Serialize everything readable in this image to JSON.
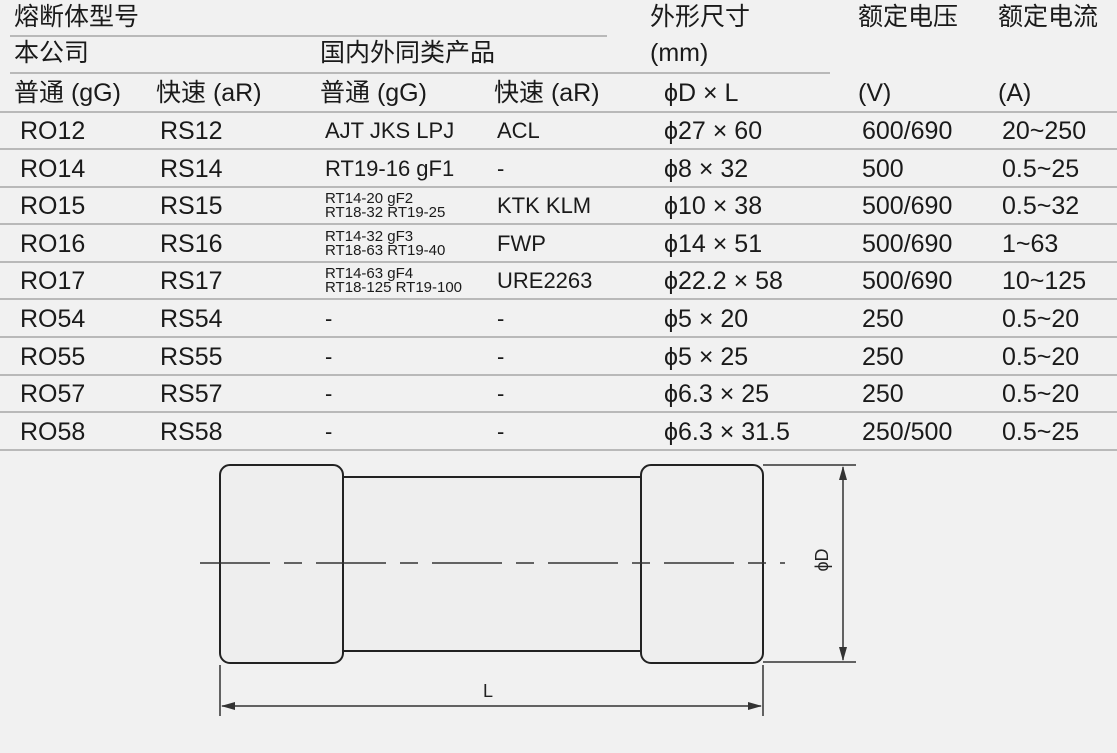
{
  "header": {
    "model_title": "熔断体型号",
    "company": "本公司",
    "similar": "国内外同类产品",
    "dims_title": "外形尺寸",
    "dims_unit": "(mm)",
    "dims_sub": "ϕD × L",
    "voltage_title": "额定电压",
    "voltage_unit": "(V)",
    "current_title": "额定电流",
    "current_unit": "(A)",
    "col_gg": "普通 (gG)",
    "col_ar": "快速 (aR)",
    "col_gg2": "普通 (gG)",
    "col_ar2": "快速 (aR)"
  },
  "rows": [
    {
      "ro": "RO12",
      "rs": "RS12",
      "gg": [
        "AJT JKS LPJ"
      ],
      "ar": "ACL",
      "dim": "ϕ27 × 60",
      "v": "600/690",
      "a": "20~250"
    },
    {
      "ro": "RO14",
      "rs": "RS14",
      "gg": [
        "RT19-16 gF1"
      ],
      "ar": "-",
      "dim": "ϕ8 × 32",
      "v": "500",
      "a": "0.5~25"
    },
    {
      "ro": "RO15",
      "rs": "RS15",
      "gg": [
        "RT14-20 gF2",
        "RT18-32 RT19-25"
      ],
      "ar": "KTK KLM",
      "dim": "ϕ10 × 38",
      "v": "500/690",
      "a": "0.5~32"
    },
    {
      "ro": "RO16",
      "rs": "RS16",
      "gg": [
        "RT14-32 gF3",
        "RT18-63 RT19-40"
      ],
      "ar": "FWP",
      "dim": "ϕ14 × 51",
      "v": "500/690",
      "a": "1~63"
    },
    {
      "ro": "RO17",
      "rs": "RS17",
      "gg": [
        "RT14-63 gF4",
        "RT18-125 RT19-100"
      ],
      "ar": "URE2263",
      "dim": "ϕ22.2 × 58",
      "v": "500/690",
      "a": "10~125"
    },
    {
      "ro": "RO54",
      "rs": "RS54",
      "gg": [
        "-"
      ],
      "ar": "-",
      "dim": "ϕ5 × 20",
      "v": "250",
      "a": "0.5~20"
    },
    {
      "ro": "RO55",
      "rs": "RS55",
      "gg": [
        "-"
      ],
      "ar": "-",
      "dim": "ϕ5 × 25",
      "v": "250",
      "a": "0.5~20"
    },
    {
      "ro": "RO57",
      "rs": "RS57",
      "gg": [
        "-"
      ],
      "ar": "-",
      "dim": "ϕ6.3 × 25",
      "v": "250",
      "a": "0.5~20"
    },
    {
      "ro": "RO58",
      "rs": "RS58",
      "gg": [
        "-"
      ],
      "ar": "-",
      "dim": "ϕ6.3 × 31.5",
      "v": "250/500",
      "a": "0.5~25"
    }
  ],
  "diagram": {
    "label_d": "ϕD",
    "label_l": "L"
  }
}
